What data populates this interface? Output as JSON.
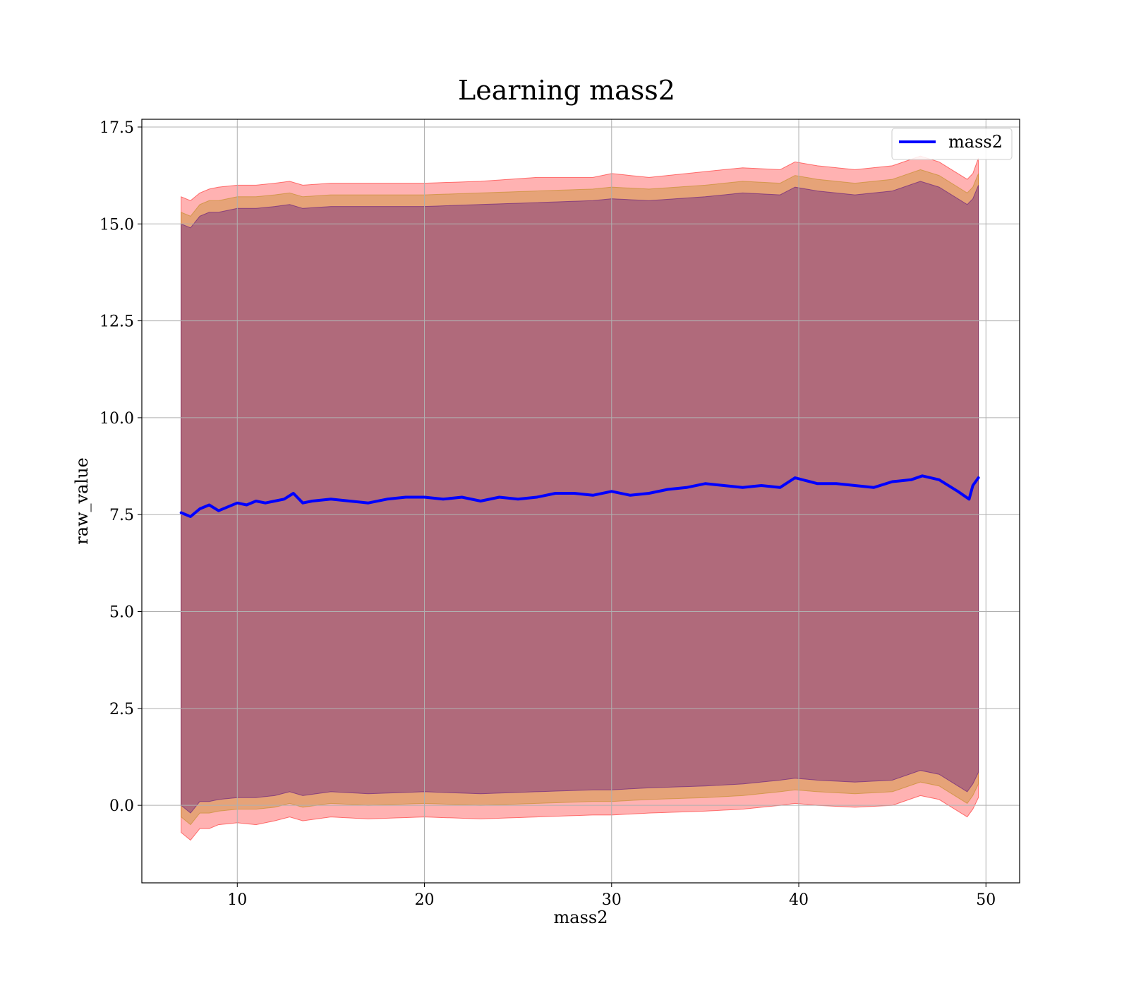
{
  "chart_data": {
    "type": "line",
    "title": "Learning mass2",
    "xlabel": "mass2",
    "ylabel": "raw_value",
    "xlim": [
      4.9,
      51.8
    ],
    "ylim": [
      -2.0,
      17.7
    ],
    "xticks": [
      10,
      20,
      30,
      40,
      50
    ],
    "yticks": [
      0.0,
      2.5,
      5.0,
      7.5,
      10.0,
      12.5,
      15.0,
      17.5
    ],
    "grid": true,
    "legend_position": "top-right",
    "series": [
      {
        "name": "mass2",
        "color": "#0000ff",
        "x": [
          7.0,
          7.5,
          8.0,
          8.5,
          9.0,
          9.5,
          10.0,
          10.5,
          11.0,
          11.5,
          12.0,
          12.5,
          13.0,
          13.5,
          14.0,
          15.0,
          16.0,
          17.0,
          18.0,
          19.0,
          20.0,
          21.0,
          22.0,
          23.0,
          24.0,
          25.0,
          26.0,
          27.0,
          28.0,
          29.0,
          30.0,
          31.0,
          32.0,
          33.0,
          34.0,
          35.0,
          36.0,
          37.0,
          38.0,
          39.0,
          39.8,
          41.0,
          42.0,
          43.0,
          44.0,
          45.0,
          46.0,
          46.6,
          47.5,
          48.5,
          49.1,
          49.3,
          49.6
        ],
        "values": [
          7.55,
          7.45,
          7.65,
          7.75,
          7.6,
          7.7,
          7.8,
          7.75,
          7.85,
          7.8,
          7.85,
          7.9,
          8.05,
          7.8,
          7.85,
          7.9,
          7.85,
          7.8,
          7.9,
          7.95,
          7.95,
          7.9,
          7.95,
          7.85,
          7.95,
          7.9,
          7.95,
          8.05,
          8.05,
          8.0,
          8.1,
          8.0,
          8.05,
          8.15,
          8.2,
          8.3,
          8.25,
          8.2,
          8.25,
          8.2,
          8.45,
          8.3,
          8.3,
          8.25,
          8.2,
          8.35,
          8.4,
          8.5,
          8.4,
          8.1,
          7.9,
          8.25,
          8.45
        ]
      }
    ],
    "bands": [
      {
        "color": "#ff0000",
        "opacity": 0.3,
        "x": [
          7.0,
          7.5,
          8.0,
          8.5,
          9.0,
          10.0,
          11.0,
          12.0,
          12.8,
          13.5,
          15.0,
          17.0,
          20.0,
          23.0,
          26.0,
          29.0,
          30.0,
          32.0,
          35.0,
          37.0,
          39.0,
          39.8,
          41.0,
          43.0,
          45.0,
          46.5,
          47.5,
          49.0,
          49.3,
          49.6
        ],
        "upper": [
          15.7,
          15.6,
          15.8,
          15.9,
          15.95,
          16.0,
          16.0,
          16.05,
          16.1,
          16.0,
          16.05,
          16.05,
          16.05,
          16.1,
          16.2,
          16.2,
          16.3,
          16.2,
          16.35,
          16.45,
          16.4,
          16.6,
          16.5,
          16.4,
          16.5,
          16.75,
          16.6,
          16.15,
          16.3,
          16.7
        ],
        "lower": [
          -0.7,
          -0.9,
          -0.6,
          -0.6,
          -0.5,
          -0.45,
          -0.5,
          -0.4,
          -0.3,
          -0.4,
          -0.3,
          -0.35,
          -0.3,
          -0.35,
          -0.3,
          -0.25,
          -0.25,
          -0.2,
          -0.15,
          -0.1,
          0.0,
          0.05,
          0.0,
          -0.05,
          0.0,
          0.25,
          0.15,
          -0.3,
          -0.1,
          0.2
        ]
      },
      {
        "color": "#b8860b",
        "opacity": 0.35,
        "x": [
          7.0,
          7.5,
          8.0,
          8.5,
          9.0,
          10.0,
          11.0,
          12.0,
          12.8,
          13.5,
          15.0,
          17.0,
          20.0,
          23.0,
          26.0,
          29.0,
          30.0,
          32.0,
          35.0,
          37.0,
          39.0,
          39.8,
          41.0,
          43.0,
          45.0,
          46.5,
          47.5,
          49.0,
          49.3,
          49.6
        ],
        "upper": [
          15.3,
          15.2,
          15.5,
          15.6,
          15.6,
          15.7,
          15.7,
          15.75,
          15.8,
          15.7,
          15.75,
          15.75,
          15.75,
          15.8,
          15.85,
          15.9,
          15.95,
          15.9,
          16.0,
          16.1,
          16.05,
          16.25,
          16.15,
          16.05,
          16.15,
          16.4,
          16.25,
          15.8,
          15.95,
          16.3
        ],
        "lower": [
          -0.3,
          -0.5,
          -0.2,
          -0.2,
          -0.15,
          -0.1,
          -0.1,
          -0.05,
          0.05,
          -0.05,
          0.05,
          0.0,
          0.05,
          0.0,
          0.05,
          0.1,
          0.1,
          0.15,
          0.2,
          0.25,
          0.35,
          0.4,
          0.35,
          0.3,
          0.35,
          0.6,
          0.5,
          0.05,
          0.25,
          0.55
        ]
      },
      {
        "color": "#4b0082",
        "opacity": 0.35,
        "x": [
          7.0,
          7.5,
          8.0,
          8.5,
          9.0,
          10.0,
          11.0,
          12.0,
          12.8,
          13.5,
          15.0,
          17.0,
          20.0,
          23.0,
          26.0,
          29.0,
          30.0,
          32.0,
          35.0,
          37.0,
          39.0,
          39.8,
          41.0,
          43.0,
          45.0,
          46.5,
          47.5,
          49.0,
          49.3,
          49.6
        ],
        "upper": [
          15.0,
          14.9,
          15.2,
          15.3,
          15.3,
          15.4,
          15.4,
          15.45,
          15.5,
          15.4,
          15.45,
          15.45,
          15.45,
          15.5,
          15.55,
          15.6,
          15.65,
          15.6,
          15.7,
          15.8,
          15.75,
          15.95,
          15.85,
          15.75,
          15.85,
          16.1,
          15.95,
          15.5,
          15.65,
          16.0
        ],
        "lower": [
          0.0,
          -0.2,
          0.1,
          0.1,
          0.15,
          0.2,
          0.2,
          0.25,
          0.35,
          0.25,
          0.35,
          0.3,
          0.35,
          0.3,
          0.35,
          0.4,
          0.4,
          0.45,
          0.5,
          0.55,
          0.65,
          0.7,
          0.65,
          0.6,
          0.65,
          0.9,
          0.8,
          0.35,
          0.55,
          0.85
        ]
      }
    ]
  }
}
